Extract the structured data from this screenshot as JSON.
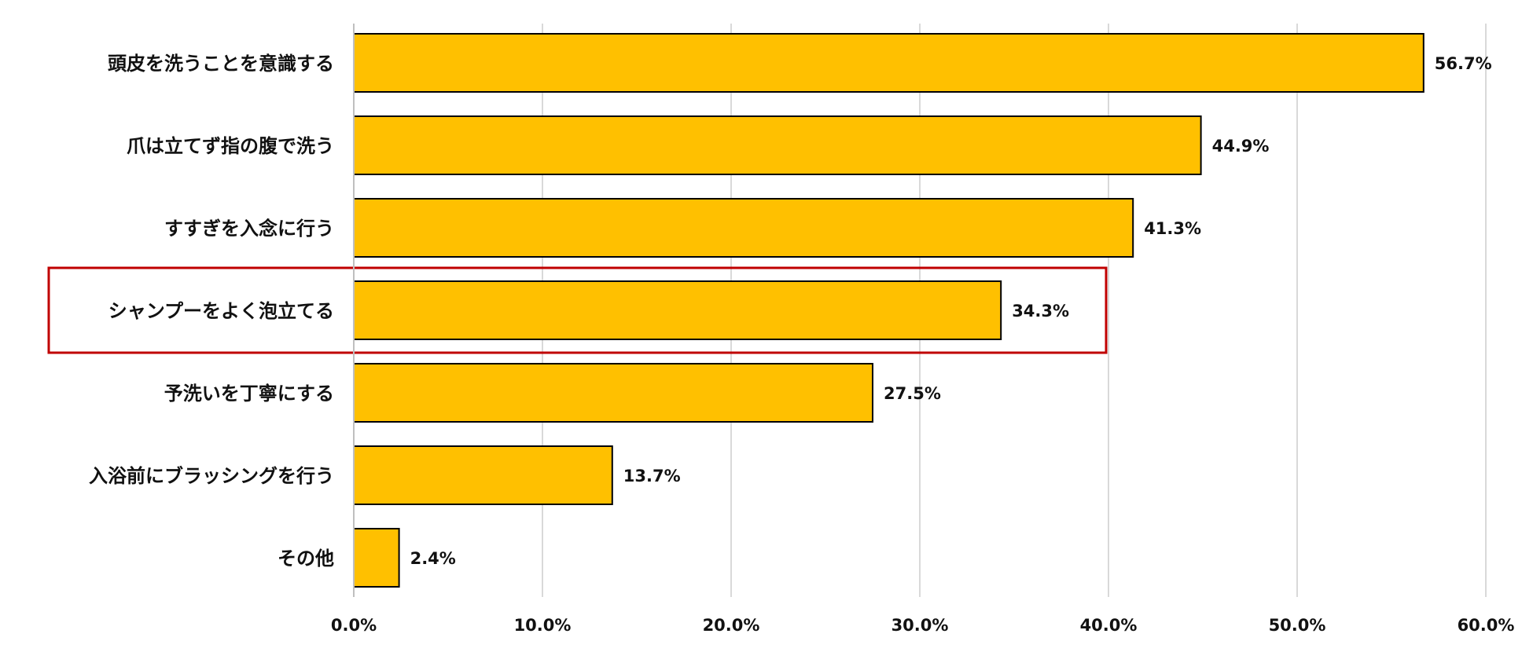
{
  "chart_data": {
    "type": "bar",
    "orientation": "horizontal",
    "categories": [
      "頭皮を洗うことを意識する",
      "爪は立てず指の腹で洗う",
      "すすぎを入念に行う",
      "シャンプーをよく泡立てる",
      "予洗いを丁寧にする",
      "入浴前にブラッシングを行う",
      "その他"
    ],
    "values": [
      56.7,
      44.9,
      41.3,
      34.3,
      27.5,
      13.7,
      2.4
    ],
    "value_labels": [
      "56.7%",
      "44.9%",
      "41.3%",
      "34.3%",
      "27.5%",
      "13.7%",
      "2.4%"
    ],
    "xlim": [
      0,
      60
    ],
    "x_ticks": [
      0,
      10,
      20,
      30,
      40,
      50,
      60
    ],
    "x_tick_labels": [
      "0.0%",
      "10.0%",
      "20.0%",
      "30.0%",
      "40.0%",
      "50.0%",
      "60.0%"
    ],
    "grid": "vertical",
    "legend": "none",
    "highlighted_category": "シャンプーをよく泡立てる",
    "colors": {
      "bar_fill": "#FFC000",
      "bar_stroke": "#000000",
      "grid": "#D9D9D9",
      "axis": "#BFBFBF",
      "highlight_box": "#C00000"
    }
  }
}
